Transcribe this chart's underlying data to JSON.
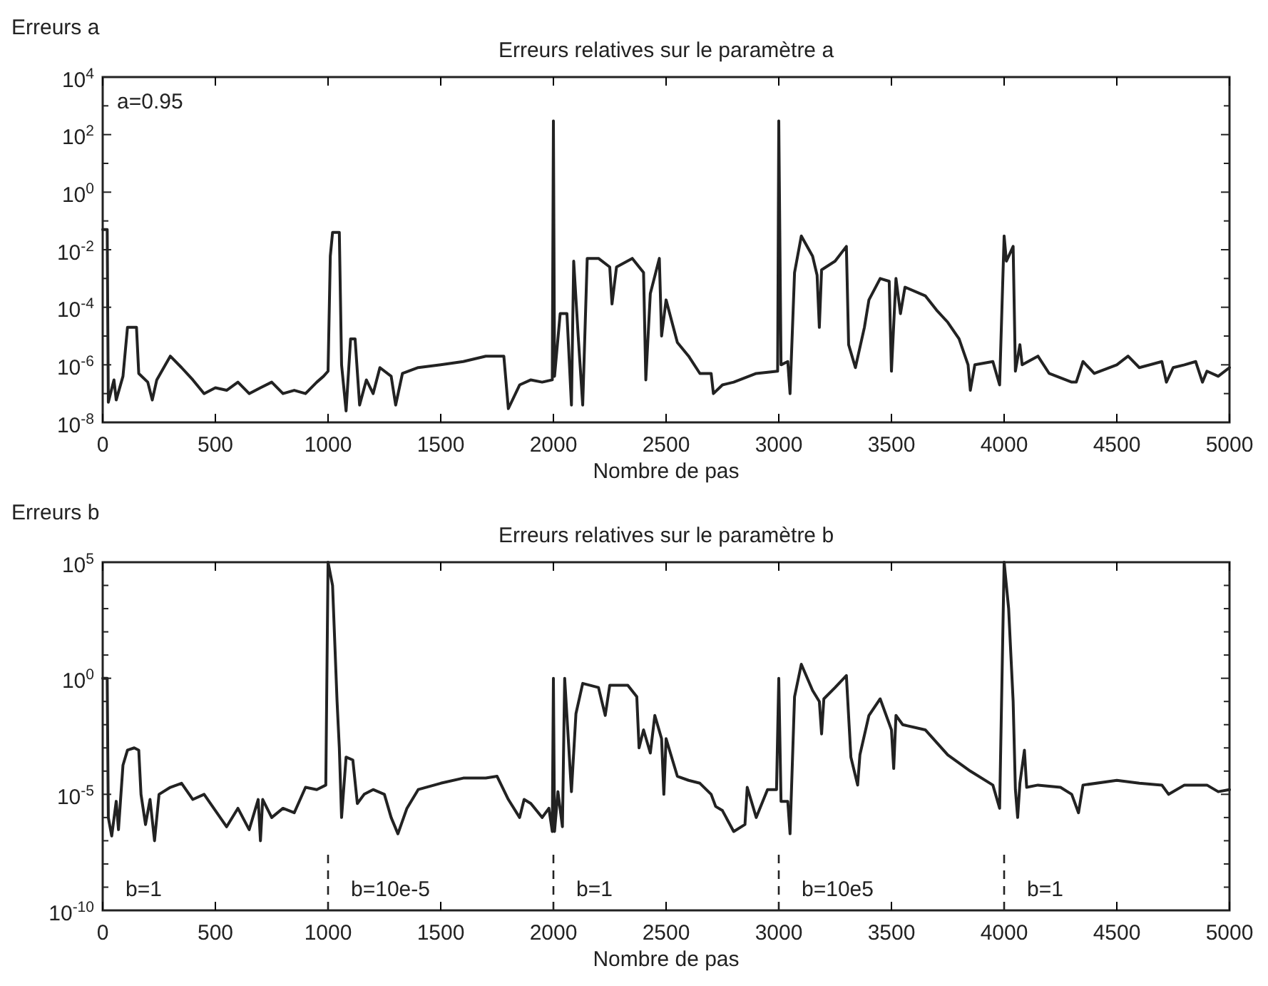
{
  "chart_data": [
    {
      "type": "line",
      "title": "Erreurs relatives sur le paramètre a",
      "xlabel": "Nombre de pas",
      "ylabel": "Erreurs a",
      "log": "y",
      "grid": false,
      "marker": "none",
      "line_style": "solid",
      "xlim": [
        0,
        5000
      ],
      "xticks": [
        0,
        500,
        1000,
        1500,
        2000,
        2500,
        3000,
        3500,
        4000,
        4500,
        5000
      ],
      "ylim": [
        1e-08,
        10000.0
      ],
      "yticks": [
        {
          "value": 1e-08,
          "label": "10$^{-8}$"
        },
        {
          "value": 1e-07,
          "label": null
        },
        {
          "value": 1e-06,
          "label": "10$^{-6}$"
        },
        {
          "value": 1e-05,
          "label": null
        },
        {
          "value": 0.0001,
          "label": "10$^{-4}$"
        },
        {
          "value": 0.001,
          "label": null
        },
        {
          "value": 0.01,
          "label": "10$^{-2}$"
        },
        {
          "value": 0.1,
          "label": null
        },
        {
          "value": 1,
          "label": "10$^{0}$"
        },
        {
          "value": 10,
          "label": null
        },
        {
          "value": 100,
          "label": "10$^{2}$"
        },
        {
          "value": 1000,
          "label": null
        },
        {
          "value": 10000,
          "label": "10$^{4}$"
        }
      ],
      "annotations": [
        "a=0.95"
      ],
      "series": [
        {
          "color": "#222222",
          "x": [
            0,
            20,
            25,
            50,
            60,
            90,
            110,
            150,
            160,
            200,
            220,
            240,
            300,
            350,
            400,
            450,
            500,
            550,
            600,
            650,
            700,
            750,
            800,
            850,
            900,
            950,
            980,
            1000,
            1010,
            1020,
            1050,
            1060,
            1080,
            1100,
            1120,
            1140,
            1170,
            1200,
            1230,
            1280,
            1300,
            1330,
            1400,
            1500,
            1600,
            1700,
            1780,
            1800,
            1850,
            1900,
            1950,
            1995,
            2000,
            2005,
            2030,
            2060,
            2080,
            2090,
            2110,
            2130,
            2150,
            2200,
            2250,
            2260,
            2280,
            2350,
            2400,
            2410,
            2430,
            2470,
            2480,
            2500,
            2550,
            2600,
            2650,
            2700,
            2710,
            2750,
            2800,
            2900,
            2995,
            3000,
            3010,
            3040,
            3050,
            3070,
            3100,
            3150,
            3170,
            3180,
            3190,
            3250,
            3300,
            3310,
            3340,
            3380,
            3400,
            3450,
            3490,
            3500,
            3520,
            3540,
            3560,
            3650,
            3700,
            3750,
            3800,
            3840,
            3850,
            3870,
            3950,
            3980,
            4000,
            4010,
            4040,
            4050,
            4070,
            4080,
            4150,
            4200,
            4300,
            4320,
            4350,
            4400,
            4500,
            4550,
            4600,
            4700,
            4720,
            4750,
            4800,
            4850,
            4880,
            4900,
            4950,
            5000
          ],
          "values": [
            0.05,
            0.05,
            5e-08,
            3e-07,
            6e-08,
            4e-07,
            2e-05,
            2e-05,
            5e-07,
            2.5e-07,
            6e-08,
            3e-07,
            2e-06,
            8e-07,
            3e-07,
            1e-07,
            1.6e-07,
            1.3e-07,
            2.5e-07,
            1e-07,
            1.6e-07,
            2.5e-07,
            1e-07,
            1.3e-07,
            1e-07,
            2.5e-07,
            4e-07,
            6e-07,
            0.006,
            0.04,
            0.04,
            1e-06,
            2.5e-08,
            8e-06,
            8e-06,
            4e-08,
            3e-07,
            1e-07,
            8e-07,
            4e-07,
            4e-08,
            5e-07,
            8e-07,
            1e-06,
            1.3e-06,
            2e-06,
            2e-06,
            3e-08,
            2e-07,
            3e-07,
            2.5e-07,
            3e-07,
            300.0,
            4e-07,
            6e-05,
            6e-05,
            4e-08,
            0.004,
            1e-05,
            4e-08,
            0.005,
            0.005,
            0.0025,
            0.00013,
            0.0025,
            0.005,
            0.0016,
            3e-07,
            0.0003,
            0.005,
            1e-05,
            0.00018,
            6e-06,
            2e-06,
            5e-07,
            5e-07,
            1e-07,
            2e-07,
            2.5e-07,
            5e-07,
            6e-07,
            300.0,
            1e-06,
            1.3e-06,
            1e-07,
            0.0016,
            0.03,
            0.006,
            0.0013,
            2e-05,
            0.002,
            0.004,
            0.013,
            5e-06,
            8e-07,
            2e-05,
            0.00018,
            0.001,
            0.0008,
            6e-07,
            0.001,
            6e-05,
            0.0005,
            0.00025,
            8e-05,
            3e-05,
            8e-06,
            1e-06,
            1.3e-07,
            1e-06,
            1.3e-06,
            2e-07,
            0.03,
            0.004,
            0.013,
            6e-07,
            5e-06,
            1e-06,
            2e-06,
            5e-07,
            2.5e-07,
            2.5e-07,
            1.3e-06,
            5e-07,
            1e-06,
            2e-06,
            8e-07,
            1.3e-06,
            2.5e-07,
            8e-07,
            1e-06,
            1.3e-06,
            2.5e-07,
            6e-07,
            4e-07,
            8e-07
          ]
        }
      ]
    },
    {
      "type": "line",
      "title": "Erreurs relatives sur le paramètre b",
      "xlabel": "Nombre de pas",
      "ylabel": "Erreurs b",
      "log": "y",
      "grid": false,
      "marker": "none",
      "line_style": "solid",
      "xlim": [
        0,
        5000
      ],
      "xticks": [
        0,
        500,
        1000,
        1500,
        2000,
        2500,
        3000,
        3500,
        4000,
        4500,
        5000
      ],
      "ylim": [
        1e-10,
        100000.0
      ],
      "yticks": [
        {
          "value": 1e-10,
          "label": "10$^{-10}$"
        },
        {
          "value": 1e-09,
          "label": null
        },
        {
          "value": 1e-08,
          "label": null
        },
        {
          "value": 1e-07,
          "label": null
        },
        {
          "value": 1e-06,
          "label": null
        },
        {
          "value": 1e-05,
          "label": "10$^{-5}$"
        },
        {
          "value": 0.0001,
          "label": null
        },
        {
          "value": 0.001,
          "label": null
        },
        {
          "value": 0.01,
          "label": null
        },
        {
          "value": 0.1,
          "label": null
        },
        {
          "value": 1,
          "label": "10$^{0}$"
        },
        {
          "value": 10,
          "label": null
        },
        {
          "value": 100,
          "label": null
        },
        {
          "value": 1000,
          "label": null
        },
        {
          "value": 10000,
          "label": null
        },
        {
          "value": 100000,
          "label": "10$^{5}$"
        }
      ],
      "ref_lines": [
        {
          "axis": "x",
          "value": 1000,
          "line_style": "dashed"
        },
        {
          "axis": "x",
          "value": 2000,
          "line_style": "dashed"
        },
        {
          "axis": "x",
          "value": 3000,
          "line_style": "dashed"
        },
        {
          "axis": "x",
          "value": 4000,
          "line_style": "dashed"
        }
      ],
      "annotations": [
        "b=1",
        "b=10e-5",
        "b=1",
        "b=10e5",
        "b=1"
      ],
      "series": [
        {
          "color": "#222222",
          "x": [
            0,
            20,
            25,
            40,
            60,
            70,
            90,
            110,
            140,
            160,
            170,
            190,
            210,
            230,
            250,
            300,
            350,
            400,
            450,
            500,
            550,
            600,
            650,
            690,
            700,
            710,
            750,
            800,
            850,
            900,
            950,
            990,
            1000,
            1020,
            1040,
            1050,
            1060,
            1080,
            1110,
            1130,
            1160,
            1200,
            1250,
            1280,
            1310,
            1350,
            1400,
            1500,
            1600,
            1700,
            1750,
            1800,
            1850,
            1870,
            1900,
            1950,
            1980,
            1995,
            2000,
            2005,
            2020,
            2040,
            2050,
            2080,
            2100,
            2130,
            2200,
            2230,
            2250,
            2330,
            2370,
            2380,
            2400,
            2430,
            2450,
            2480,
            2490,
            2500,
            2550,
            2600,
            2650,
            2700,
            2720,
            2750,
            2800,
            2850,
            2860,
            2900,
            2950,
            2990,
            3000,
            3010,
            3040,
            3050,
            3070,
            3100,
            3150,
            3180,
            3190,
            3200,
            3250,
            3300,
            3320,
            3350,
            3360,
            3400,
            3450,
            3500,
            3510,
            3520,
            3550,
            3650,
            3750,
            3850,
            3950,
            3980,
            4000,
            4020,
            4040,
            4050,
            4060,
            4070,
            4090,
            4100,
            4150,
            4250,
            4300,
            4330,
            4350,
            4500,
            4600,
            4700,
            4730,
            4800,
            4900,
            4950,
            5000
          ],
          "values": [
            1,
            1,
            1e-06,
            1.6e-07,
            5e-06,
            3e-07,
            0.00018,
            0.0008,
            0.001,
            0.0008,
            1e-05,
            5e-07,
            6e-06,
            1e-07,
            1e-05,
            2e-05,
            3e-05,
            6e-06,
            1e-05,
            2e-06,
            4e-07,
            2.5e-06,
            3e-07,
            6e-06,
            1e-07,
            6e-06,
            1e-06,
            2.5e-06,
            1.6e-06,
            2e-05,
            1.6e-05,
            2.5e-05,
            100000.0,
            10000.0,
            0.1,
            0.001,
            1e-06,
            0.0004,
            0.0003,
            4e-06,
            1e-05,
            1.6e-05,
            1e-05,
            1e-06,
            2e-07,
            2.5e-06,
            1.6e-05,
            3e-05,
            5e-05,
            5e-05,
            6e-05,
            6e-06,
            1e-06,
            6e-06,
            4e-06,
            1e-06,
            2.5e-06,
            2.5e-07,
            1,
            2.5e-07,
            1.3e-05,
            4e-07,
            1,
            1.3e-05,
            0.03,
            0.6,
            0.4,
            0.025,
            0.5,
            0.5,
            0.16,
            0.001,
            0.006,
            0.0006,
            0.025,
            0.0025,
            1e-05,
            0.0025,
            6e-05,
            4e-05,
            3e-05,
            1e-05,
            3e-06,
            2e-06,
            2.5e-07,
            5e-07,
            2e-05,
            1e-06,
            1.6e-05,
            1.6e-05,
            1,
            5e-06,
            5e-06,
            2e-07,
            0.16,
            4,
            0.3,
            0.1,
            0.004,
            0.13,
            0.4,
            1.3,
            0.0004,
            2.5e-05,
            0.0005,
            0.025,
            0.13,
            0.006,
            0.00013,
            0.025,
            0.01,
            0.006,
            0.0005,
            0.0001,
            2.5e-05,
            2.5e-06,
            100000.0,
            1000.0,
            0.1,
            1.6e-05,
            1e-06,
            3e-05,
            0.0008,
            2e-05,
            2.5e-05,
            2e-05,
            1e-05,
            1.6e-06,
            2.5e-05,
            4e-05,
            3e-05,
            2.5e-05,
            1e-05,
            2.5e-05,
            2.5e-05,
            1.3e-05,
            1.6e-05
          ]
        }
      ]
    }
  ]
}
